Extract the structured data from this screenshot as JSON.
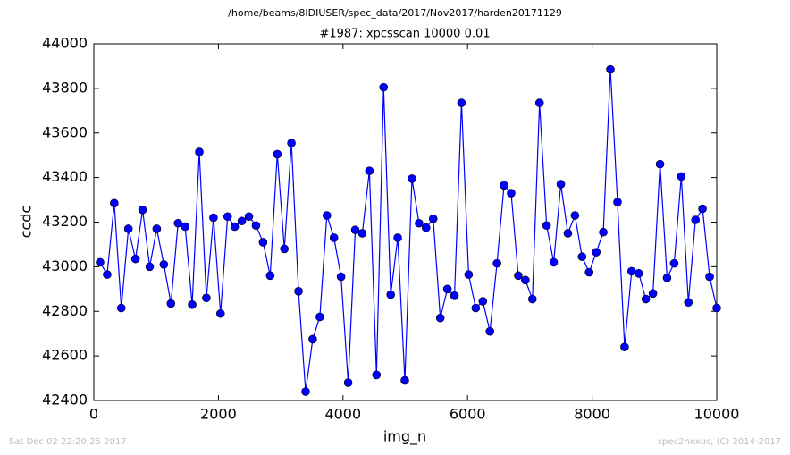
{
  "chart_data": {
    "type": "line",
    "suptitle": "/home/beams/8IDIUSER/spec_data/2017/Nov2017/harden20171129",
    "title": "#1987: xpcsscan 10000 0.01",
    "x_label": "img_n",
    "y_label": "ccdc",
    "footer_left": "Sat Dec 02 22:20:25 2017",
    "footer_right": "spec2nexus, (C) 2014-2017",
    "x": [
      100,
      214,
      328,
      441,
      555,
      669,
      783,
      897,
      1010,
      1124,
      1238,
      1352,
      1466,
      1579,
      1693,
      1807,
      1921,
      2034,
      2148,
      2262,
      2376,
      2490,
      2603,
      2717,
      2831,
      2945,
      3059,
      3172,
      3286,
      3400,
      3514,
      3628,
      3741,
      3855,
      3969,
      4083,
      4197,
      4310,
      4424,
      4538,
      4652,
      4766,
      4879,
      4993,
      5107,
      5221,
      5334,
      5448,
      5562,
      5676,
      5790,
      5903,
      6017,
      6131,
      6245,
      6359,
      6472,
      6586,
      6700,
      6814,
      6928,
      7041,
      7155,
      7269,
      7383,
      7497,
      7610,
      7724,
      7838,
      7952,
      8066,
      8179,
      8293,
      8407,
      8521,
      8634,
      8748,
      8862,
      8976,
      9090,
      9203,
      9317,
      9431,
      9545,
      9659,
      9772,
      9886,
      10000
    ],
    "series": [
      {
        "color": "#0000ff",
        "values": [
          43020,
          42965,
          43285,
          42815,
          43170,
          43035,
          43255,
          43000,
          43170,
          43010,
          42835,
          43195,
          43180,
          42830,
          43515,
          42860,
          43220,
          42790,
          43225,
          43180,
          43205,
          43225,
          43185,
          43110,
          42960,
          43505,
          43080,
          43555,
          42890,
          42440,
          42675,
          42775,
          43230,
          43130,
          42955,
          42480,
          43165,
          43150,
          43430,
          42515,
          43805,
          42875,
          43130,
          42490,
          43395,
          43195,
          43175,
          43215,
          42770,
          42900,
          42870,
          43735,
          42965,
          42815,
          42845,
          42710,
          43015,
          43365,
          43330,
          42960,
          42940,
          42855,
          43735,
          43185,
          43020,
          43370,
          43150,
          43230,
          43045,
          42975,
          43065,
          43155,
          43885,
          43290,
          42640,
          42980,
          42970,
          42855,
          42880,
          43460,
          42950,
          43015,
          43405,
          42840,
          43210,
          43260,
          42955,
          42815
        ]
      }
    ],
    "xlim": [
      0,
      10000
    ],
    "xticks": [
      0,
      2000,
      4000,
      6000,
      8000,
      10000
    ],
    "ylim": [
      42400,
      44000
    ],
    "yticks": [
      42400,
      42600,
      42800,
      43000,
      43200,
      43400,
      43600,
      43800,
      44000
    ]
  }
}
